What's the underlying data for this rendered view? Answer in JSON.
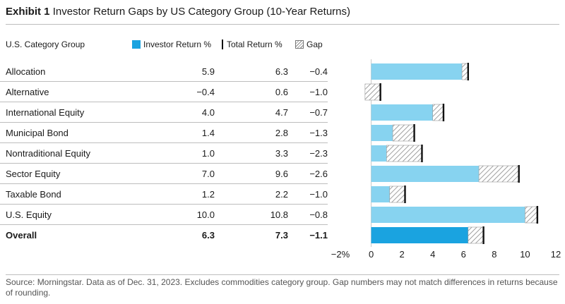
{
  "header": {
    "exhibit": "Exhibit 1",
    "title": "Investor Return Gaps by US Category Group (10-Year Returns)"
  },
  "table": {
    "col_category": "U.S. Category Group",
    "legend_investor": "Investor Return %",
    "legend_total": "Total Return %",
    "legend_gap": "Gap",
    "rows": [
      {
        "name": "Allocation",
        "investor": "5.9",
        "total": "6.3",
        "gap": "−0.4"
      },
      {
        "name": "Alternative",
        "investor": "−0.4",
        "total": "0.6",
        "gap": "−1.0"
      },
      {
        "name": "International Equity",
        "investor": "4.0",
        "total": "4.7",
        "gap": "−0.7"
      },
      {
        "name": "Municipal Bond",
        "investor": "1.4",
        "total": "2.8",
        "gap": "−1.3"
      },
      {
        "name": "Nontraditional Equity",
        "investor": "1.0",
        "total": "3.3",
        "gap": "−2.3"
      },
      {
        "name": "Sector Equity",
        "investor": "7.0",
        "total": "9.6",
        "gap": "−2.6"
      },
      {
        "name": "Taxable Bond",
        "investor": "1.2",
        "total": "2.2",
        "gap": "−1.0"
      },
      {
        "name": "U.S. Equity",
        "investor": "10.0",
        "total": "10.8",
        "gap": "−0.8"
      },
      {
        "name": "Overall",
        "investor": "6.3",
        "total": "7.3",
        "gap": "−1.1"
      }
    ]
  },
  "chart_data": {
    "type": "bar",
    "orientation": "horizontal",
    "categories": [
      "Allocation",
      "Alternative",
      "International Equity",
      "Municipal Bond",
      "Nontraditional Equity",
      "Sector Equity",
      "Taxable Bond",
      "U.S. Equity",
      "Overall"
    ],
    "series": [
      {
        "name": "Investor Return %",
        "values": [
          5.9,
          -0.4,
          4.0,
          1.4,
          1.0,
          7.0,
          1.2,
          10.0,
          6.3
        ]
      },
      {
        "name": "Total Return %",
        "values": [
          6.3,
          0.6,
          4.7,
          2.8,
          3.3,
          9.6,
          2.2,
          10.8,
          7.3
        ]
      },
      {
        "name": "Gap",
        "values": [
          -0.4,
          -1.0,
          -0.7,
          -1.3,
          -2.3,
          -2.6,
          -1.0,
          -0.8,
          -1.1
        ]
      }
    ],
    "xlim": [
      -2,
      12
    ],
    "xticks": [
      -2,
      0,
      2,
      4,
      6,
      8,
      10,
      12
    ],
    "xtick_labels": [
      "−2%",
      "0",
      "2",
      "4",
      "6",
      "8",
      "10",
      "12"
    ],
    "colors": {
      "investor": "#87d3f0",
      "overall": "#1aa3e0",
      "total": "#111111",
      "gap_hatch": "#888888",
      "gridline": "#c8c8c8"
    },
    "legend_placement": "top"
  },
  "footer": {
    "source": "Source: Morningstar. Data as of Dec. 31, 2023. Excludes commodities category group. Gap numbers may not match differences in returns because of rounding."
  }
}
